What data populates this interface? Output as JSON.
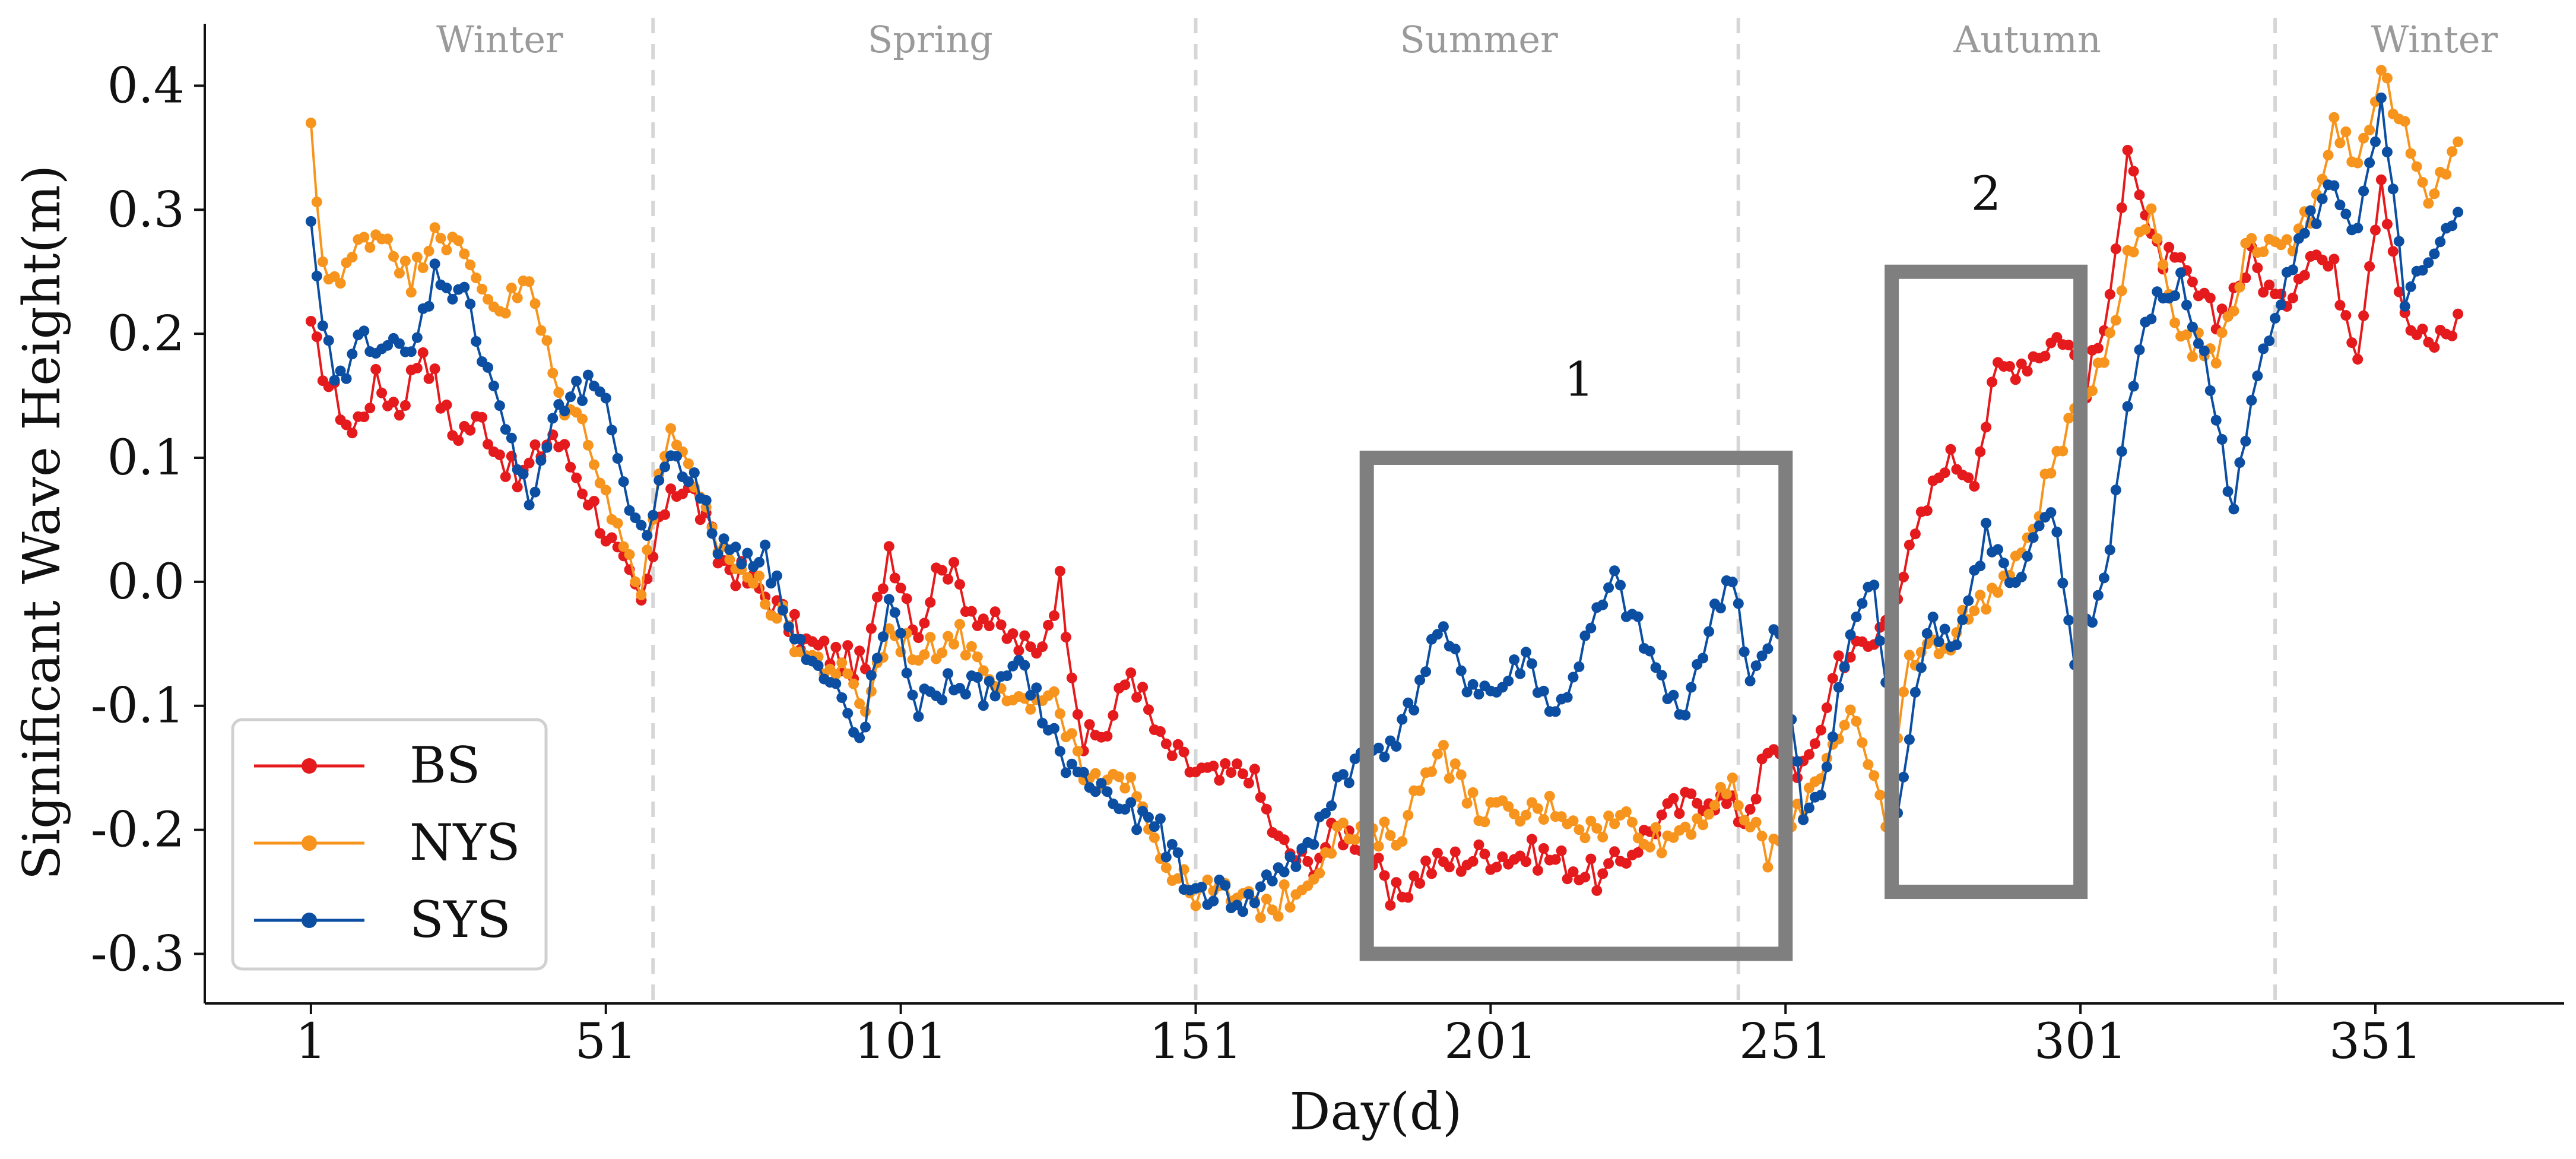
{
  "chart_data": {
    "type": "line",
    "xlabel": "Day(d)",
    "ylabel": "Significant Wave Height(m)",
    "xlim": [
      -17,
      383
    ],
    "ylim": [
      -0.34,
      0.45
    ],
    "xticks": [
      1,
      51,
      101,
      151,
      201,
      251,
      301,
      351
    ],
    "xtick_labels": [
      "1",
      "51",
      "101",
      "151",
      "201",
      "251",
      "301",
      "351"
    ],
    "yticks": [
      -0.3,
      -0.2,
      -0.1,
      0.0,
      0.1,
      0.2,
      0.3,
      0.4
    ],
    "ytick_labels": [
      "-0.3",
      "-0.2",
      "-0.1",
      "0.0",
      "0.1",
      "0.2",
      "0.3",
      "0.4"
    ],
    "season_boundaries": [
      59,
      151,
      243,
      334
    ],
    "seasons": [
      {
        "label": "Winter",
        "x": 33
      },
      {
        "label": "Spring",
        "x": 106
      },
      {
        "label": "Summer",
        "x": 199
      },
      {
        "label": "Autumn",
        "x": 292
      },
      {
        "label": "Winter",
        "x": 361
      }
    ],
    "regions": [
      {
        "label": "1",
        "x0": 180,
        "x1": 251,
        "y0": -0.3,
        "y1": 0.1,
        "label_x": 216,
        "label_y": 0.15
      },
      {
        "label": "2",
        "x0": 269,
        "x1": 301,
        "y0": -0.25,
        "y1": 0.25,
        "label_x": 285,
        "label_y": 0.3
      }
    ],
    "legend": {
      "position": "lower-left"
    },
    "series": [
      {
        "name": "BS",
        "color": "#e41a1c",
        "anchors": [
          [
            1,
            0.2
          ],
          [
            4,
            0.16
          ],
          [
            8,
            0.12
          ],
          [
            12,
            0.16
          ],
          [
            16,
            0.14
          ],
          [
            20,
            0.19
          ],
          [
            25,
            0.12
          ],
          [
            30,
            0.13
          ],
          [
            36,
            0.08
          ],
          [
            42,
            0.12
          ],
          [
            48,
            0.07
          ],
          [
            52,
            0.03
          ],
          [
            57,
            -0.02
          ],
          [
            62,
            0.08
          ],
          [
            66,
            0.07
          ],
          [
            70,
            0.02
          ],
          [
            78,
            -0.01
          ],
          [
            85,
            -0.05
          ],
          [
            90,
            -0.06
          ],
          [
            95,
            -0.07
          ],
          [
            99,
            0.03
          ],
          [
            104,
            -0.04
          ],
          [
            108,
            0.02
          ],
          [
            113,
            -0.02
          ],
          [
            118,
            -0.04
          ],
          [
            124,
            -0.06
          ],
          [
            128,
            0.0
          ],
          [
            132,
            -0.13
          ],
          [
            136,
            -0.12
          ],
          [
            140,
            -0.07
          ],
          [
            145,
            -0.13
          ],
          [
            150,
            -0.15
          ],
          [
            155,
            -0.16
          ],
          [
            160,
            -0.15
          ],
          [
            165,
            -0.21
          ],
          [
            170,
            -0.23
          ],
          [
            175,
            -0.2
          ],
          [
            180,
            -0.21
          ],
          [
            184,
            -0.26
          ],
          [
            190,
            -0.23
          ],
          [
            200,
            -0.22
          ],
          [
            210,
            -0.22
          ],
          [
            220,
            -0.24
          ],
          [
            230,
            -0.19
          ],
          [
            238,
            -0.17
          ],
          [
            244,
            -0.19
          ],
          [
            248,
            -0.14
          ],
          [
            255,
            -0.15
          ],
          [
            260,
            -0.06
          ],
          [
            266,
            -0.05
          ],
          [
            272,
            0.02
          ],
          [
            278,
            0.1
          ],
          [
            283,
            0.09
          ],
          [
            287,
            0.17
          ],
          [
            292,
            0.18
          ],
          [
            298,
            0.2
          ],
          [
            302,
            0.16
          ],
          [
            306,
            0.22
          ],
          [
            309,
            0.36
          ],
          [
            313,
            0.27
          ],
          [
            318,
            0.25
          ],
          [
            324,
            0.21
          ],
          [
            330,
            0.26
          ],
          [
            335,
            0.22
          ],
          [
            340,
            0.27
          ],
          [
            344,
            0.25
          ],
          [
            348,
            0.19
          ],
          [
            352,
            0.33
          ],
          [
            356,
            0.21
          ],
          [
            360,
            0.19
          ],
          [
            365,
            0.21
          ]
        ],
        "amp": 0.013
      },
      {
        "name": "NYS",
        "color": "#f7941d",
        "anchors": [
          [
            1,
            0.36
          ],
          [
            3,
            0.26
          ],
          [
            6,
            0.24
          ],
          [
            10,
            0.28
          ],
          [
            14,
            0.28
          ],
          [
            18,
            0.24
          ],
          [
            22,
            0.29
          ],
          [
            27,
            0.26
          ],
          [
            33,
            0.22
          ],
          [
            38,
            0.24
          ],
          [
            43,
            0.15
          ],
          [
            48,
            0.12
          ],
          [
            53,
            0.04
          ],
          [
            57,
            0.0
          ],
          [
            62,
            0.13
          ],
          [
            66,
            0.07
          ],
          [
            70,
            0.03
          ],
          [
            78,
            -0.01
          ],
          [
            85,
            -0.06
          ],
          [
            90,
            -0.07
          ],
          [
            95,
            -0.1
          ],
          [
            99,
            -0.04
          ],
          [
            105,
            -0.06
          ],
          [
            110,
            -0.04
          ],
          [
            116,
            -0.07
          ],
          [
            122,
            -0.1
          ],
          [
            128,
            -0.1
          ],
          [
            132,
            -0.16
          ],
          [
            136,
            -0.17
          ],
          [
            140,
            -0.15
          ],
          [
            145,
            -0.22
          ],
          [
            150,
            -0.25
          ],
          [
            155,
            -0.25
          ],
          [
            160,
            -0.26
          ],
          [
            165,
            -0.26
          ],
          [
            170,
            -0.24
          ],
          [
            175,
            -0.2
          ],
          [
            180,
            -0.21
          ],
          [
            186,
            -0.2
          ],
          [
            192,
            -0.13
          ],
          [
            198,
            -0.18
          ],
          [
            205,
            -0.19
          ],
          [
            212,
            -0.18
          ],
          [
            218,
            -0.2
          ],
          [
            224,
            -0.19
          ],
          [
            230,
            -0.21
          ],
          [
            236,
            -0.19
          ],
          [
            242,
            -0.17
          ],
          [
            248,
            -0.22
          ],
          [
            252,
            -0.2
          ],
          [
            256,
            -0.16
          ],
          [
            262,
            -0.1
          ],
          [
            268,
            -0.2
          ],
          [
            272,
            -0.06
          ],
          [
            278,
            -0.05
          ],
          [
            283,
            -0.02
          ],
          [
            290,
            0.01
          ],
          [
            296,
            0.09
          ],
          [
            300,
            0.13
          ],
          [
            306,
            0.2
          ],
          [
            309,
            0.26
          ],
          [
            313,
            0.3
          ],
          [
            318,
            0.2
          ],
          [
            324,
            0.18
          ],
          [
            330,
            0.28
          ],
          [
            335,
            0.26
          ],
          [
            340,
            0.3
          ],
          [
            344,
            0.37
          ],
          [
            348,
            0.34
          ],
          [
            352,
            0.41
          ],
          [
            356,
            0.36
          ],
          [
            360,
            0.3
          ],
          [
            365,
            0.36
          ]
        ],
        "amp": 0.012
      },
      {
        "name": "SYS",
        "color": "#0b4ea2",
        "anchors": [
          [
            1,
            0.28
          ],
          [
            3,
            0.2
          ],
          [
            6,
            0.16
          ],
          [
            10,
            0.2
          ],
          [
            14,
            0.19
          ],
          [
            18,
            0.18
          ],
          [
            22,
            0.25
          ],
          [
            27,
            0.23
          ],
          [
            32,
            0.16
          ],
          [
            38,
            0.06
          ],
          [
            42,
            0.13
          ],
          [
            46,
            0.15
          ],
          [
            50,
            0.16
          ],
          [
            54,
            0.07
          ],
          [
            58,
            0.04
          ],
          [
            62,
            0.11
          ],
          [
            66,
            0.08
          ],
          [
            70,
            0.03
          ],
          [
            78,
            0.02
          ],
          [
            85,
            -0.06
          ],
          [
            90,
            -0.09
          ],
          [
            94,
            -0.13
          ],
          [
            99,
            -0.02
          ],
          [
            104,
            -0.1
          ],
          [
            110,
            -0.08
          ],
          [
            116,
            -0.09
          ],
          [
            122,
            -0.07
          ],
          [
            128,
            -0.14
          ],
          [
            132,
            -0.16
          ],
          [
            136,
            -0.17
          ],
          [
            140,
            -0.19
          ],
          [
            145,
            -0.2
          ],
          [
            150,
            -0.25
          ],
          [
            155,
            -0.25
          ],
          [
            160,
            -0.26
          ],
          [
            165,
            -0.23
          ],
          [
            170,
            -0.22
          ],
          [
            175,
            -0.16
          ],
          [
            180,
            -0.14
          ],
          [
            186,
            -0.12
          ],
          [
            192,
            -0.04
          ],
          [
            197,
            -0.08
          ],
          [
            202,
            -0.09
          ],
          [
            207,
            -0.06
          ],
          [
            212,
            -0.11
          ],
          [
            218,
            -0.04
          ],
          [
            222,
            0.0
          ],
          [
            228,
            -0.06
          ],
          [
            233,
            -0.11
          ],
          [
            238,
            -0.04
          ],
          [
            242,
            0.01
          ],
          [
            245,
            -0.08
          ],
          [
            250,
            -0.04
          ],
          [
            254,
            -0.19
          ],
          [
            258,
            -0.15
          ],
          [
            262,
            -0.04
          ],
          [
            266,
            0.0
          ],
          [
            270,
            -0.18
          ],
          [
            275,
            -0.03
          ],
          [
            280,
            -0.05
          ],
          [
            285,
            0.04
          ],
          [
            290,
            -0.01
          ],
          [
            296,
            0.06
          ],
          [
            300,
            -0.06
          ],
          [
            305,
            0.0
          ],
          [
            309,
            0.14
          ],
          [
            313,
            0.22
          ],
          [
            318,
            0.24
          ],
          [
            322,
            0.18
          ],
          [
            327,
            0.06
          ],
          [
            332,
            0.19
          ],
          [
            336,
            0.25
          ],
          [
            340,
            0.29
          ],
          [
            344,
            0.32
          ],
          [
            348,
            0.28
          ],
          [
            352,
            0.38
          ],
          [
            356,
            0.23
          ],
          [
            360,
            0.25
          ],
          [
            365,
            0.29
          ]
        ],
        "amp": 0.012
      }
    ]
  }
}
